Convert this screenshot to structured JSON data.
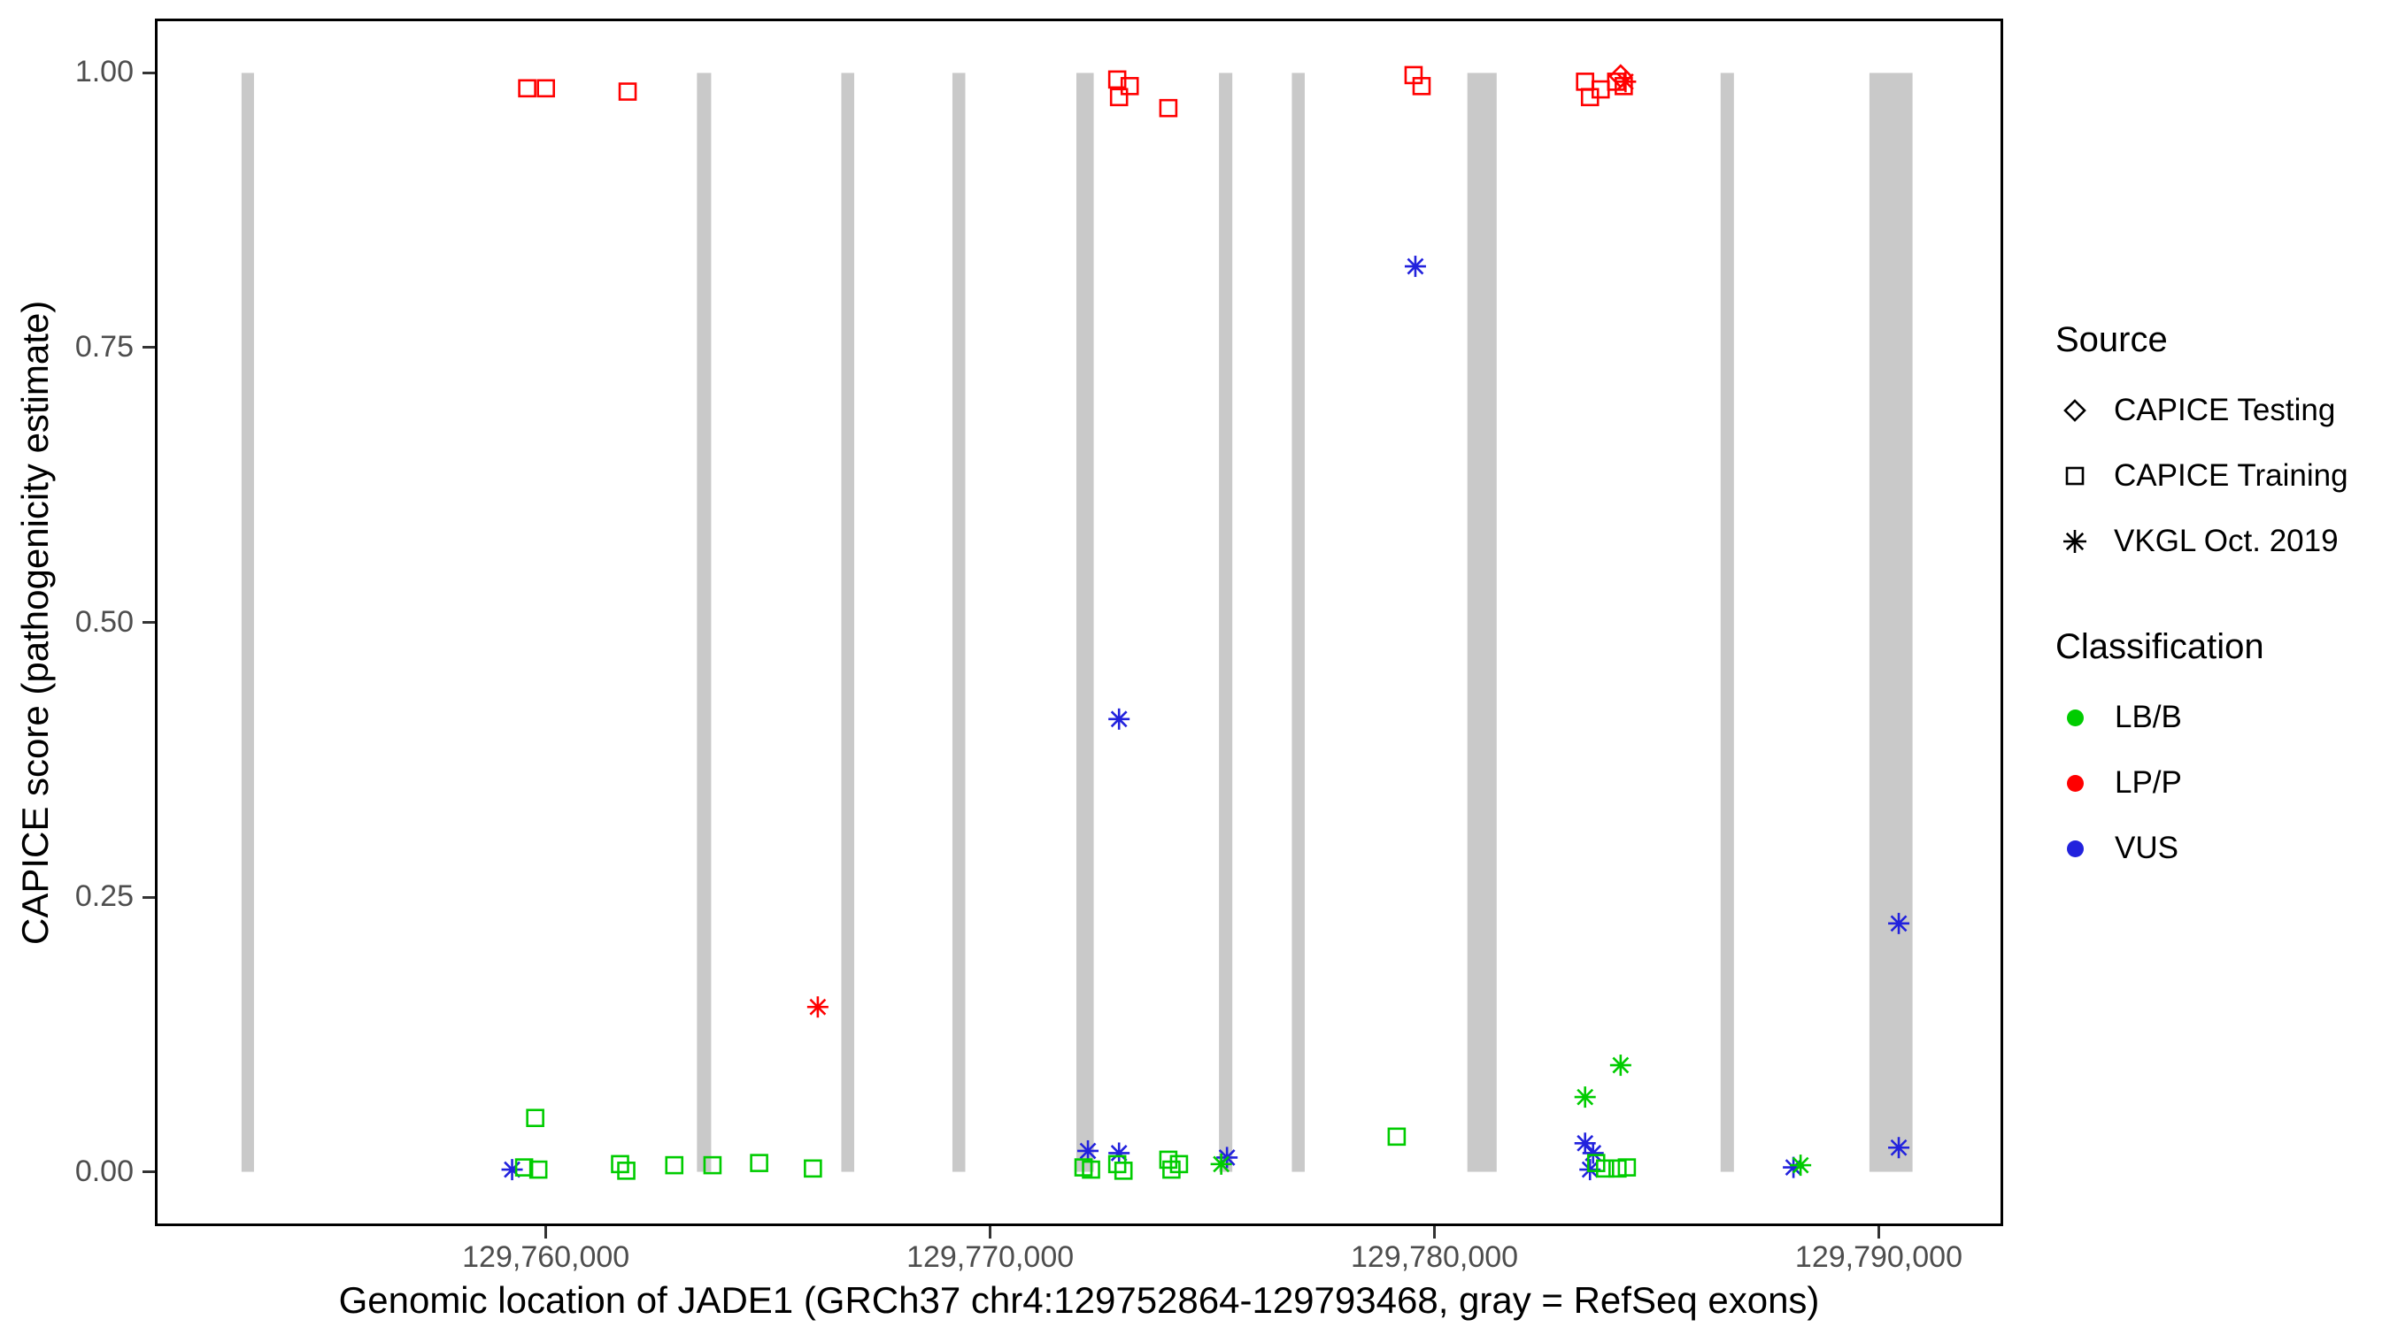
{
  "y_axis": {
    "label": "CAPICE score (pathogenicity estimate)"
  },
  "x_axis": {
    "label": "Genomic location of JADE1 (GRCh37 chr4:129752864-129793468, gray = RefSeq exons)"
  },
  "legend": {
    "source": {
      "title": "Source",
      "items": [
        {
          "label": "CAPICE Testing",
          "shape": "diamond"
        },
        {
          "label": "CAPICE Training",
          "shape": "square"
        },
        {
          "label": "VKGL Oct. 2019",
          "shape": "asterisk"
        }
      ]
    },
    "classification": {
      "title": "Classification",
      "items": [
        {
          "label": "LB/B",
          "color": "#00CC00"
        },
        {
          "label": "LP/P",
          "color": "#FF0000"
        },
        {
          "label": "VUS",
          "color": "#2222DD"
        }
      ]
    }
  },
  "chart_data": {
    "type": "scatter",
    "title": "",
    "xlabel": "Genomic location of JADE1 (GRCh37 chr4:129752864-129793468, gray = RefSeq exons)",
    "ylabel": "CAPICE score (pathogenicity estimate)",
    "xlim": [
      129751200,
      129792800
    ],
    "ylim": [
      0,
      1
    ],
    "y_expand": 0.045,
    "grid": false,
    "legend_position": "right",
    "x_ticks": [
      {
        "value": 129760000,
        "label": "129,760,000"
      },
      {
        "value": 129770000,
        "label": "129,770,000"
      },
      {
        "value": 129780000,
        "label": "129,780,000"
      },
      {
        "value": 129790000,
        "label": "129,790,000"
      }
    ],
    "y_ticks": [
      {
        "value": 0.0,
        "label": "0.00"
      },
      {
        "value": 0.25,
        "label": "0.25"
      },
      {
        "value": 0.5,
        "label": "0.50"
      },
      {
        "value": 0.75,
        "label": "0.75"
      },
      {
        "value": 1.0,
        "label": "1.00"
      }
    ],
    "exon_color": "#C9C9C9",
    "class_colors": {
      "LB/B": "#00CC00",
      "LP/P": "#FF0000",
      "VUS": "#2222DD"
    },
    "exons": [
      {
        "start": 129753150,
        "end": 129753430
      },
      {
        "start": 129763400,
        "end": 129763720
      },
      {
        "start": 129766650,
        "end": 129766940
      },
      {
        "start": 129769150,
        "end": 129769440
      },
      {
        "start": 129771940,
        "end": 129772330
      },
      {
        "start": 129775150,
        "end": 129775450
      },
      {
        "start": 129776790,
        "end": 129777080
      },
      {
        "start": 129780740,
        "end": 129781400
      },
      {
        "start": 129786440,
        "end": 129786740
      },
      {
        "start": 129789790,
        "end": 129790760
      }
    ],
    "points": [
      {
        "x": 129759580,
        "y": 0.986,
        "shape": "square",
        "cls": "LP/P"
      },
      {
        "x": 129760000,
        "y": 0.986,
        "shape": "square",
        "cls": "LP/P"
      },
      {
        "x": 129761840,
        "y": 0.983,
        "shape": "square",
        "cls": "LP/P"
      },
      {
        "x": 129772860,
        "y": 0.994,
        "shape": "square",
        "cls": "LP/P"
      },
      {
        "x": 129773140,
        "y": 0.988,
        "shape": "square",
        "cls": "LP/P"
      },
      {
        "x": 129772900,
        "y": 0.978,
        "shape": "square",
        "cls": "LP/P"
      },
      {
        "x": 129774010,
        "y": 0.968,
        "shape": "square",
        "cls": "LP/P"
      },
      {
        "x": 129779530,
        "y": 0.998,
        "shape": "square",
        "cls": "LP/P"
      },
      {
        "x": 129779710,
        "y": 0.988,
        "shape": "square",
        "cls": "LP/P"
      },
      {
        "x": 129783390,
        "y": 0.992,
        "shape": "square",
        "cls": "LP/P"
      },
      {
        "x": 129783500,
        "y": 0.978,
        "shape": "square",
        "cls": "LP/P"
      },
      {
        "x": 129783740,
        "y": 0.985,
        "shape": "square",
        "cls": "LP/P"
      },
      {
        "x": 129784090,
        "y": 0.992,
        "shape": "square",
        "cls": "LP/P"
      },
      {
        "x": 129784260,
        "y": 0.988,
        "shape": "square",
        "cls": "LP/P"
      },
      {
        "x": 129784190,
        "y": 0.997,
        "shape": "diamond",
        "cls": "LP/P"
      },
      {
        "x": 129784300,
        "y": 0.992,
        "shape": "asterisk",
        "cls": "LP/P"
      },
      {
        "x": 129766120,
        "y": 0.15,
        "shape": "asterisk",
        "cls": "LP/P"
      },
      {
        "x": 129779570,
        "y": 0.824,
        "shape": "asterisk",
        "cls": "VUS"
      },
      {
        "x": 129772900,
        "y": 0.412,
        "shape": "asterisk",
        "cls": "VUS"
      },
      {
        "x": 129790450,
        "y": 0.226,
        "shape": "asterisk",
        "cls": "VUS"
      },
      {
        "x": 129790450,
        "y": 0.022,
        "shape": "asterisk",
        "cls": "VUS"
      },
      {
        "x": 129759240,
        "y": 0.002,
        "shape": "asterisk",
        "cls": "VUS"
      },
      {
        "x": 129772200,
        "y": 0.019,
        "shape": "asterisk",
        "cls": "VUS"
      },
      {
        "x": 129772900,
        "y": 0.017,
        "shape": "asterisk",
        "cls": "VUS"
      },
      {
        "x": 129775330,
        "y": 0.013,
        "shape": "asterisk",
        "cls": "VUS"
      },
      {
        "x": 129783390,
        "y": 0.026,
        "shape": "asterisk",
        "cls": "VUS"
      },
      {
        "x": 129783570,
        "y": 0.017,
        "shape": "asterisk",
        "cls": "VUS"
      },
      {
        "x": 129783500,
        "y": 0.002,
        "shape": "asterisk",
        "cls": "VUS"
      },
      {
        "x": 129788080,
        "y": 0.004,
        "shape": "asterisk",
        "cls": "VUS"
      },
      {
        "x": 129775200,
        "y": 0.007,
        "shape": "asterisk",
        "cls": "LB/B"
      },
      {
        "x": 129783390,
        "y": 0.068,
        "shape": "asterisk",
        "cls": "LB/B"
      },
      {
        "x": 129784190,
        "y": 0.097,
        "shape": "asterisk",
        "cls": "LB/B"
      },
      {
        "x": 129788240,
        "y": 0.006,
        "shape": "asterisk",
        "cls": "LB/B"
      },
      {
        "x": 129759760,
        "y": 0.049,
        "shape": "square",
        "cls": "LB/B"
      },
      {
        "x": 129759510,
        "y": 0.004,
        "shape": "square",
        "cls": "LB/B"
      },
      {
        "x": 129759830,
        "y": 0.002,
        "shape": "square",
        "cls": "LB/B"
      },
      {
        "x": 129761670,
        "y": 0.007,
        "shape": "square",
        "cls": "LB/B"
      },
      {
        "x": 129761810,
        "y": 0.001,
        "shape": "square",
        "cls": "LB/B"
      },
      {
        "x": 129762890,
        "y": 0.006,
        "shape": "square",
        "cls": "LB/B"
      },
      {
        "x": 129763750,
        "y": 0.006,
        "shape": "square",
        "cls": "LB/B"
      },
      {
        "x": 129764800,
        "y": 0.008,
        "shape": "square",
        "cls": "LB/B"
      },
      {
        "x": 129766010,
        "y": 0.003,
        "shape": "square",
        "cls": "LB/B"
      },
      {
        "x": 129772100,
        "y": 0.004,
        "shape": "square",
        "cls": "LB/B"
      },
      {
        "x": 129772270,
        "y": 0.002,
        "shape": "square",
        "cls": "LB/B"
      },
      {
        "x": 129772860,
        "y": 0.007,
        "shape": "square",
        "cls": "LB/B"
      },
      {
        "x": 129773000,
        "y": 0.001,
        "shape": "square",
        "cls": "LB/B"
      },
      {
        "x": 129774010,
        "y": 0.011,
        "shape": "square",
        "cls": "LB/B"
      },
      {
        "x": 129774080,
        "y": 0.002,
        "shape": "square",
        "cls": "LB/B"
      },
      {
        "x": 129774250,
        "y": 0.007,
        "shape": "square",
        "cls": "LB/B"
      },
      {
        "x": 129779150,
        "y": 0.032,
        "shape": "square",
        "cls": "LB/B"
      },
      {
        "x": 129783640,
        "y": 0.008,
        "shape": "square",
        "cls": "LB/B"
      },
      {
        "x": 129783840,
        "y": 0.003,
        "shape": "square",
        "cls": "LB/B"
      },
      {
        "x": 129784120,
        "y": 0.003,
        "shape": "square",
        "cls": "LB/B"
      },
      {
        "x": 129784330,
        "y": 0.004,
        "shape": "square",
        "cls": "LB/B"
      }
    ]
  }
}
